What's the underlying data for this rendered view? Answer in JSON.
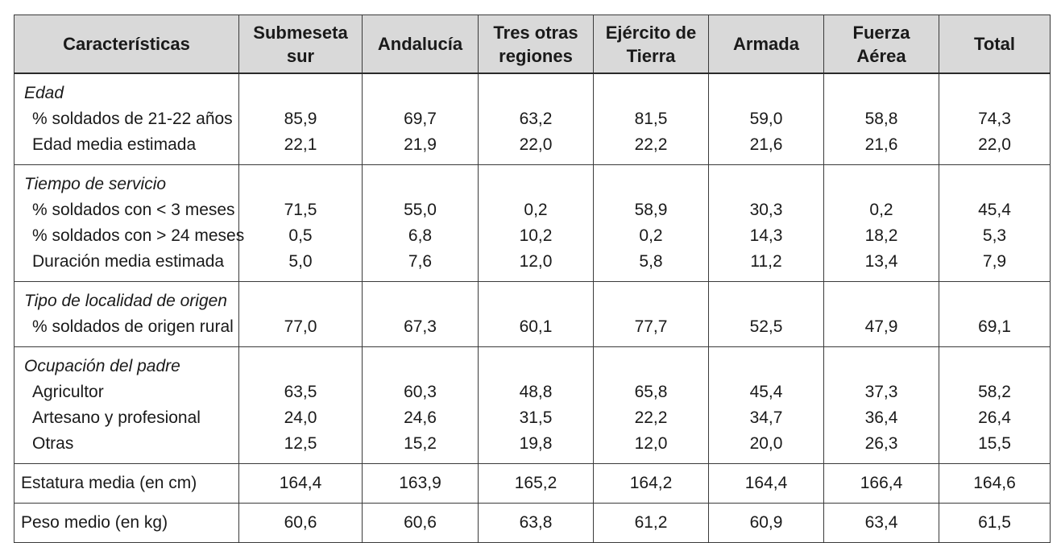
{
  "headers": [
    "Características",
    "Submeseta sur",
    "Andalucía",
    "Tres otras regiones",
    "Ejército de Tierra",
    "Armada",
    "Fuerza Aérea",
    "Total"
  ],
  "groups": [
    {
      "category": "Edad",
      "rows": [
        {
          "label": "% soldados de 21-22 años",
          "values": [
            "85,9",
            "69,7",
            "63,2",
            "81,5",
            "59,0",
            "58,8",
            "74,3"
          ]
        },
        {
          "label": "Edad media estimada",
          "values": [
            "22,1",
            "21,9",
            "22,0",
            "22,2",
            "21,6",
            "21,6",
            "22,0"
          ]
        }
      ]
    },
    {
      "category": "Tiempo de servicio",
      "rows": [
        {
          "label": "% soldados con < 3 meses",
          "values": [
            "71,5",
            "55,0",
            "0,2",
            "58,9",
            "30,3",
            "0,2",
            "45,4"
          ]
        },
        {
          "label": "% soldados con > 24 meses",
          "values": [
            "0,5",
            "6,8",
            "10,2",
            "0,2",
            "14,3",
            "18,2",
            "5,3"
          ]
        },
        {
          "label": "Duración media estimada",
          "values": [
            "5,0",
            "7,6",
            "12,0",
            "5,8",
            "11,2",
            "13,4",
            "7,9"
          ]
        }
      ]
    },
    {
      "category": "Tipo de localidad de origen",
      "rows": [
        {
          "label": "% soldados de origen rural",
          "values": [
            "77,0",
            "67,3",
            "60,1",
            "77,7",
            "52,5",
            "47,9",
            "69,1"
          ]
        }
      ]
    },
    {
      "category": "Ocupación del padre",
      "rows": [
        {
          "label": "Agricultor",
          "values": [
            "63,5",
            "60,3",
            "48,8",
            "65,8",
            "45,4",
            "37,3",
            "58,2"
          ]
        },
        {
          "label": "Artesano y profesional",
          "values": [
            "24,0",
            "24,6",
            "31,5",
            "22,2",
            "34,7",
            "36,4",
            "26,4"
          ]
        },
        {
          "label": "Otras",
          "values": [
            "12,5",
            "15,2",
            "19,8",
            "12,0",
            "20,0",
            "26,3",
            "15,5"
          ]
        }
      ]
    }
  ],
  "simple_rows": [
    {
      "label": "Estatura media (en cm)",
      "values": [
        "164,4",
        "163,9",
        "165,2",
        "164,2",
        "164,4",
        "166,4",
        "164,6"
      ]
    },
    {
      "label": "Peso medio (en kg)",
      "values": [
        "60,6",
        "60,6",
        "63,8",
        "61,2",
        "60,9",
        "63,4",
        "61,5"
      ]
    }
  ]
}
